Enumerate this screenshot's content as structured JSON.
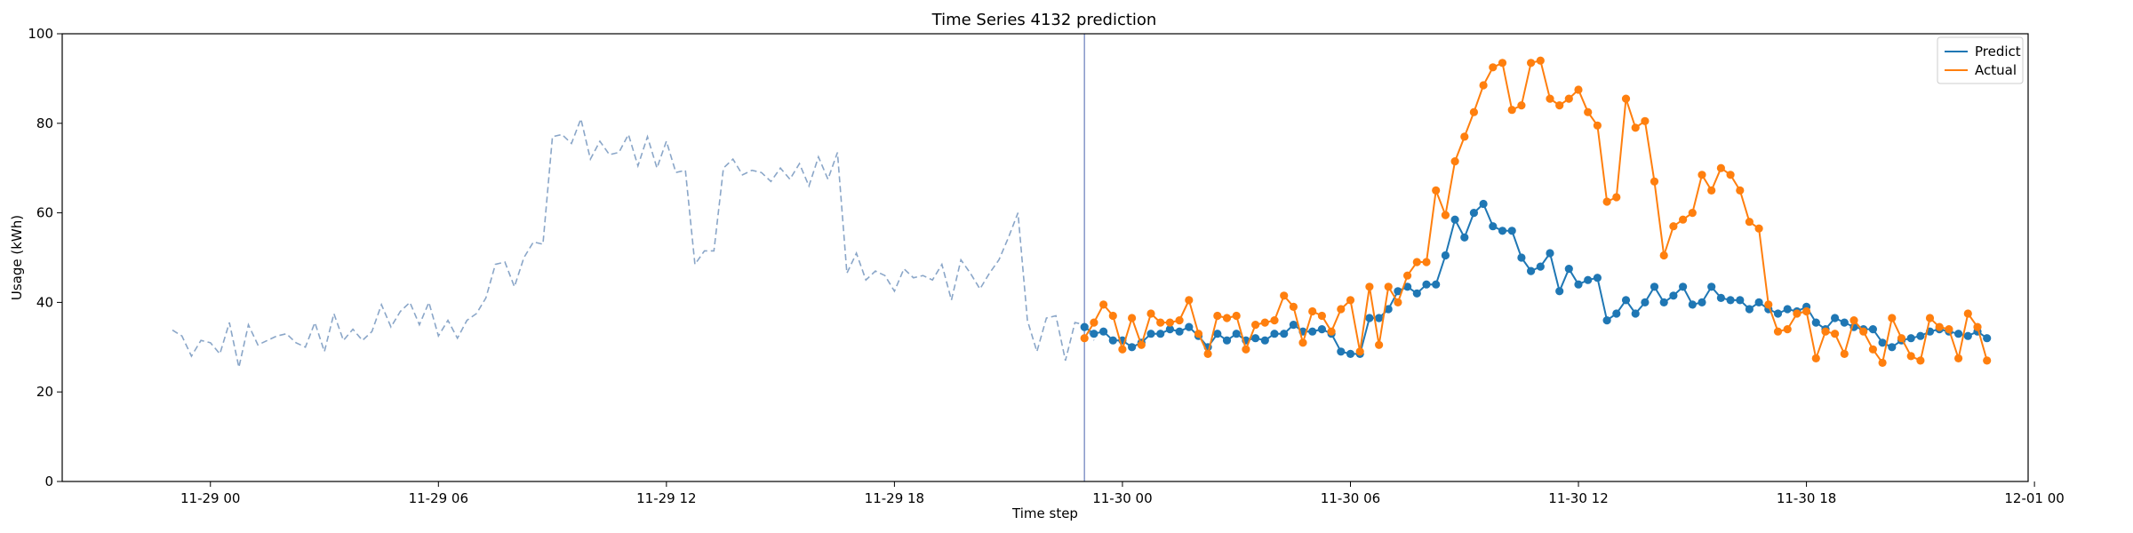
{
  "chart_data": {
    "type": "line",
    "title": "Time Series 4132 prediction",
    "xlabel": "Time step",
    "ylabel": "Usage (kWh)",
    "ylim": [
      0,
      100
    ],
    "yticks": [
      0,
      20,
      40,
      60,
      80,
      100
    ],
    "xlim": [
      "2022-11-28 20:06",
      "2022-11-30 23:50"
    ],
    "xticks": [
      {
        "t": "2022-11-29 00:00",
        "label": "11-29 00"
      },
      {
        "t": "2022-11-29 06:00",
        "label": "11-29 06"
      },
      {
        "t": "2022-11-29 12:00",
        "label": "11-29 12"
      },
      {
        "t": "2022-11-29 18:00",
        "label": "11-29 18"
      },
      {
        "t": "2022-11-30 00:00",
        "label": "11-30 00"
      },
      {
        "t": "2022-11-30 06:00",
        "label": "11-30 06"
      },
      {
        "t": "2022-11-30 12:00",
        "label": "11-30 12"
      },
      {
        "t": "2022-11-30 18:00",
        "label": "11-30 18"
      },
      {
        "t": "2022-12-01 00:00",
        "label": "12-01 00"
      }
    ],
    "legend_position": "top-right",
    "grid": false,
    "forecast_start": "2022-11-29 23:00",
    "history": {
      "start": "2022-11-28 23:00",
      "interval_minutes": 15,
      "color": "#8aa6c8",
      "style": "dashed",
      "values": [
        33.8,
        32.5,
        28,
        31.5,
        31,
        28.5,
        35.5,
        25.5,
        35,
        30.5,
        31.5,
        32.5,
        33,
        31,
        30,
        35.5,
        29,
        37.5,
        31.5,
        34,
        31.5,
        33.5,
        39.5,
        34.5,
        38,
        40,
        35,
        40,
        32.5,
        36,
        32,
        36,
        37.5,
        41,
        48.5,
        49,
        43.5,
        50,
        53.5,
        53,
        77,
        77.5,
        75.5,
        81,
        72,
        76,
        73,
        73.5,
        77.5,
        70.5,
        77,
        70,
        76,
        69,
        69.5,
        48.5,
        51.5,
        51.5,
        70,
        72,
        68.5,
        69.5,
        69,
        67,
        70,
        67.5,
        71,
        66,
        72.5,
        67.5,
        73.5,
        46.5,
        51,
        45,
        47,
        46,
        42.5,
        47.5,
        45.5,
        46,
        45,
        48.5,
        40.5,
        49.5,
        46.5,
        43,
        46.5,
        49.5,
        54.5,
        60,
        36,
        29,
        36.5,
        37,
        27,
        35.5,
        35,
        31.5
      ]
    },
    "series": [
      {
        "name": "Predict",
        "color": "#1f77b4",
        "start": "2022-11-29 23:00",
        "interval_minutes": 15,
        "values": [
          34.5,
          33,
          33.5,
          31.5,
          31.5,
          30,
          31,
          33,
          33,
          34,
          33.5,
          34.5,
          32.5,
          30,
          33,
          31.5,
          33,
          31.5,
          32,
          31.5,
          33,
          33,
          35,
          33.5,
          33.5,
          34,
          33,
          29,
          28.5,
          28.5,
          36.5,
          36.5,
          38.5,
          42.5,
          43.5,
          42,
          44,
          44,
          50.5,
          58.5,
          54.5,
          60,
          62,
          57,
          56,
          56,
          50,
          47,
          48,
          51,
          42.5,
          47.5,
          44,
          45,
          45.5,
          36,
          37.5,
          40.5,
          37.5,
          40,
          43.5,
          40,
          41.5,
          43.5,
          39.5,
          40,
          43.5,
          41,
          40.5,
          40.5,
          38.5,
          40,
          38.5,
          37.5,
          38.5,
          38,
          39,
          35.5,
          34,
          36.5,
          35.5,
          34.5,
          34,
          34,
          31,
          30,
          31.5,
          32,
          32.5,
          33.5,
          34,
          33.5,
          33,
          32.5,
          33.5,
          32
        ]
      },
      {
        "name": "Actual",
        "color": "#ff7f0e",
        "start": "2022-11-29 23:00",
        "interval_minutes": 15,
        "values": [
          32,
          35.5,
          39.5,
          37,
          29.5,
          36.5,
          30.5,
          37.5,
          35.5,
          35.5,
          36,
          40.5,
          33,
          28.5,
          37,
          36.5,
          37,
          29.5,
          35,
          35.5,
          36,
          41.5,
          39,
          31,
          38,
          37,
          33.5,
          38.5,
          40.5,
          29,
          43.5,
          30.5,
          43.5,
          40,
          46,
          49,
          49,
          65,
          59.5,
          71.5,
          77,
          82.5,
          88.5,
          92.5,
          93.5,
          83,
          84,
          93.5,
          94,
          85.5,
          84,
          85.5,
          87.5,
          82.5,
          79.5,
          62.5,
          63.5,
          85.5,
          79,
          80.5,
          67,
          50.5,
          57,
          58.5,
          60,
          68.5,
          65,
          70,
          68.5,
          65,
          58,
          56.5,
          39.5,
          33.5,
          34,
          37.5,
          38,
          27.5,
          33.5,
          33,
          28.5,
          36,
          33.5,
          29.5,
          26.5,
          36.5,
          32,
          28,
          27,
          36.5,
          34.5,
          34,
          27.5,
          37.5,
          34.5,
          27
        ]
      }
    ]
  }
}
